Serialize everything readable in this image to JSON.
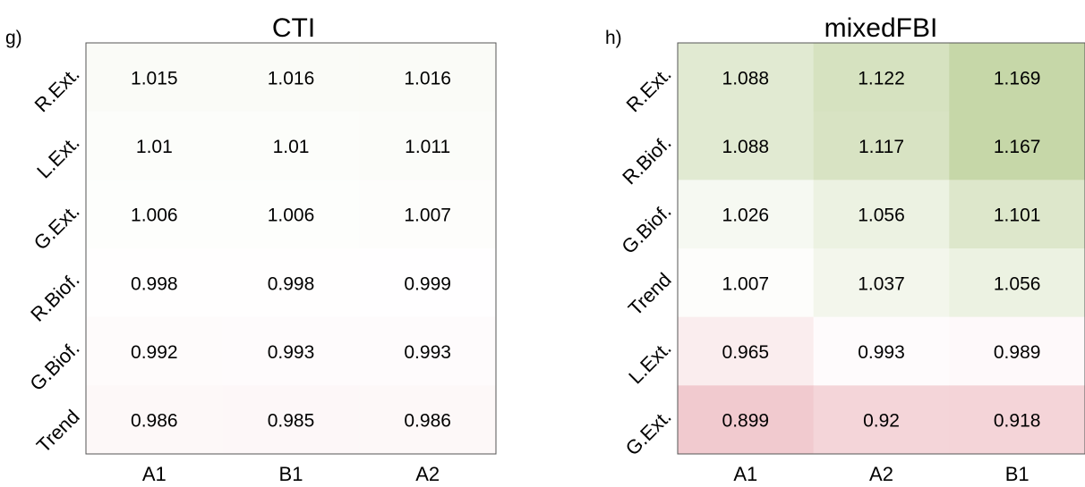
{
  "chart_data": [
    {
      "type": "heatmap",
      "panel_label": "g)",
      "title": "CTI",
      "x_categories": [
        "A1",
        "B1",
        "A2"
      ],
      "y_categories": [
        "R.Ext.",
        "L.Ext.",
        "G.Ext.",
        "R.Biof.",
        "G.Biof.",
        "Trend"
      ],
      "values": [
        [
          1.015,
          1.016,
          1.016
        ],
        [
          1.01,
          1.01,
          1.011
        ],
        [
          1.006,
          1.006,
          1.007
        ],
        [
          0.998,
          0.998,
          0.999
        ],
        [
          0.992,
          0.993,
          0.993
        ],
        [
          0.986,
          0.985,
          0.986
        ]
      ],
      "value_labels": [
        [
          "1.015",
          "1.016",
          "1.016"
        ],
        [
          "1.01",
          "1.01",
          "1.011"
        ],
        [
          "1.006",
          "1.006",
          "1.007"
        ],
        [
          "0.998",
          "0.998",
          "0.999"
        ],
        [
          "0.992",
          "0.993",
          "0.993"
        ],
        [
          "0.986",
          "0.985",
          "0.986"
        ]
      ],
      "colors": {
        "high": "#c6d7a8",
        "neutral": "#ffffff",
        "low": "#e8a6ae"
      }
    },
    {
      "type": "heatmap",
      "panel_label": "h)",
      "title": "mixedFBI",
      "x_categories": [
        "A1",
        "A2",
        "B1"
      ],
      "y_categories": [
        "R.Ext.",
        "R.Biof.",
        "G.Biof.",
        "Trend",
        "L.Ext.",
        "G.Ext."
      ],
      "values": [
        [
          1.088,
          1.122,
          1.169
        ],
        [
          1.088,
          1.117,
          1.167
        ],
        [
          1.026,
          1.056,
          1.101
        ],
        [
          1.007,
          1.037,
          1.056
        ],
        [
          0.965,
          0.993,
          0.989
        ],
        [
          0.899,
          0.92,
          0.918
        ]
      ],
      "value_labels": [
        [
          "1.088",
          "1.122",
          "1.169"
        ],
        [
          "1.088",
          "1.117",
          "1.167"
        ],
        [
          "1.026",
          "1.056",
          "1.101"
        ],
        [
          "1.007",
          "1.037",
          "1.056"
        ],
        [
          "0.965",
          "0.993",
          "0.989"
        ],
        [
          "0.899",
          "0.92",
          "0.918"
        ]
      ],
      "colors": {
        "high": "#c6d7a8",
        "neutral": "#ffffff",
        "low": "#e8a6ae"
      }
    }
  ]
}
